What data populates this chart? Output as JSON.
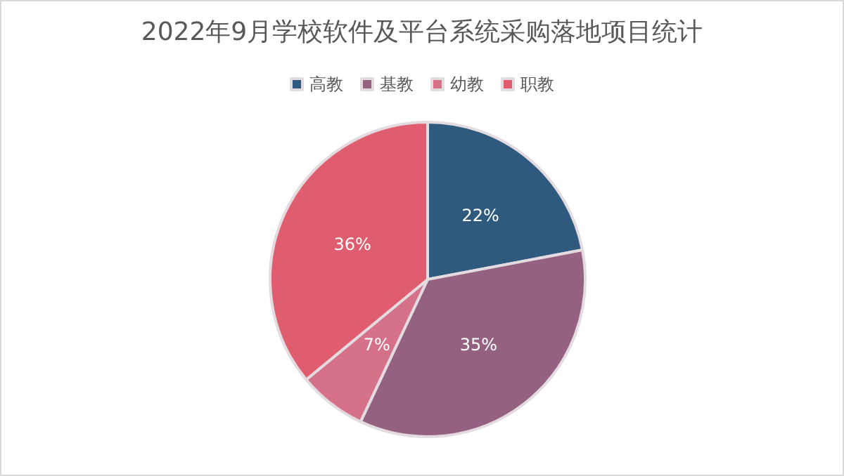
{
  "chart_data": {
    "type": "pie",
    "title": "2022年9月学校软件及平台系统采购落地项目统计",
    "categories": [
      "高教",
      "基教",
      "幼教",
      "职教"
    ],
    "values": [
      22,
      35,
      7,
      36
    ],
    "colors": [
      "#2f5a7e",
      "#946180",
      "#d6718a",
      "#e05d6f"
    ],
    "legend": "top",
    "value_labels": [
      "22%",
      "35%",
      "7%",
      "36%"
    ]
  }
}
